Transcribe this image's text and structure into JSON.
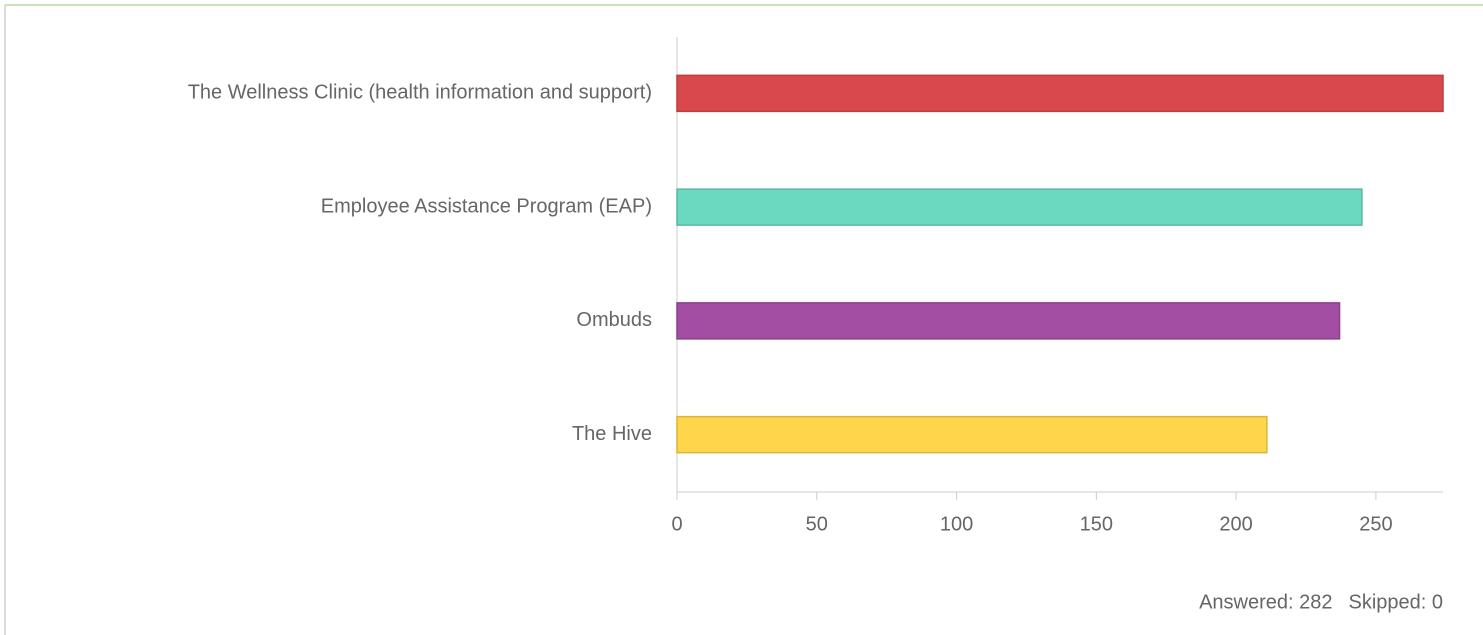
{
  "chart_data": {
    "type": "bar",
    "orientation": "horizontal",
    "categories": [
      "The Wellness Clinic (health information and support)",
      "Employee Assistance Program (EAP)",
      "Ombuds",
      "The Hive"
    ],
    "values": [
      274,
      245,
      237,
      211
    ],
    "colors": [
      "#d9494c",
      "#6bd9c0",
      "#a34da3",
      "#ffd54a"
    ],
    "xlim": [
      0,
      274
    ],
    "xticks": [
      0,
      50,
      100,
      150,
      200,
      250
    ],
    "footer": [
      "Answered: 282",
      "Skipped: 0"
    ]
  }
}
